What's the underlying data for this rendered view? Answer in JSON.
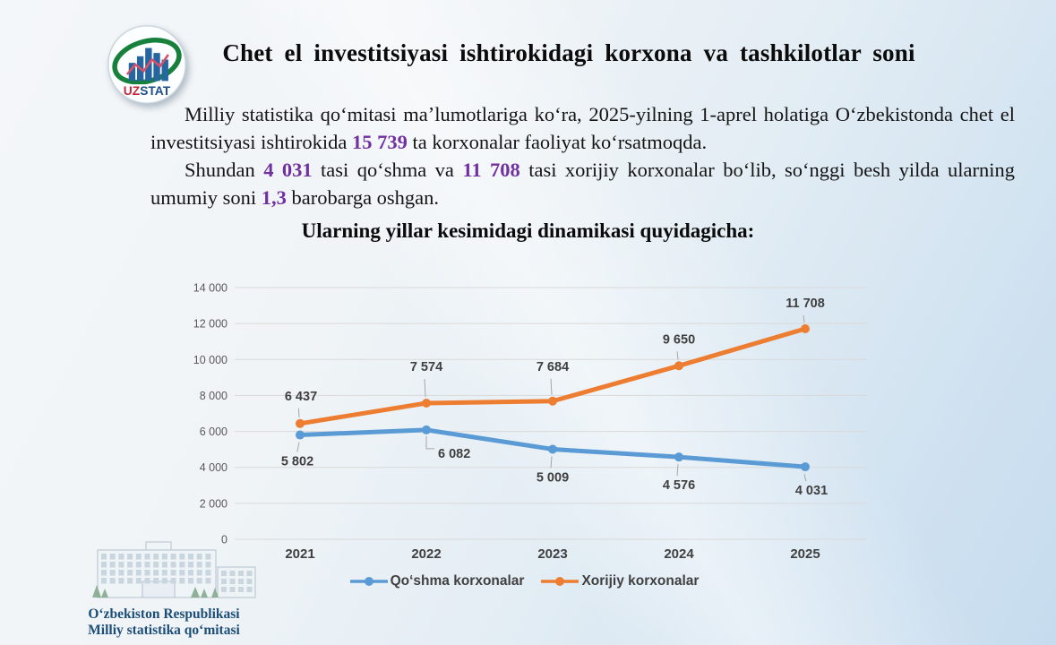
{
  "header": {
    "title": "Chet el investitsiyasi ishtirokidagi korxona va tashkilotlar soni",
    "logo": {
      "uz": "UZ",
      "stat": "STAT"
    }
  },
  "intro": {
    "highlight_color": "#7030A0",
    "paragraphs": [
      [
        {
          "text": "Milliy statistika qoʻmitasi maʼlumotlariga koʻra, 2025-yilning 1-aprel holatiga Oʻzbekistonda chet el investitsiyasi ishtirokida "
        },
        {
          "text": "15 739",
          "highlight": true
        },
        {
          "text": " ta korxonalar faoliyat koʻrsatmoqda."
        }
      ],
      [
        {
          "text": "Shundan "
        },
        {
          "text": "4 031",
          "highlight": true
        },
        {
          "text": " tasi qoʻshma va "
        },
        {
          "text": "11 708",
          "highlight": true
        },
        {
          "text": " tasi xorijiy korxonalar boʻlib, soʻnggi besh yilda ularning umumiy soni "
        },
        {
          "text": "1,3",
          "highlight": true
        },
        {
          "text": " barobarga oshgan."
        }
      ]
    ]
  },
  "subtitle": "Ularning yillar kesimidagi dinamikasi quyidagicha:",
  "chart_data": {
    "type": "line",
    "title": "",
    "categories": [
      "2021",
      "2022",
      "2023",
      "2024",
      "2025"
    ],
    "series": [
      {
        "name": "Qoʻshma korxonalar",
        "color": "#5B9BD5",
        "values": [
          5802,
          6082,
          5009,
          4576,
          4031
        ],
        "labels": [
          "5 802",
          "6 082",
          "5 009",
          "4 576",
          "4 031"
        ],
        "label_offsets": [
          {
            "dx": -3,
            "dy": 34
          },
          {
            "dx": 13,
            "dy": 31,
            "elbow": true
          },
          {
            "dx": 0,
            "dy": 36
          },
          {
            "dx": 0,
            "dy": 36
          },
          {
            "dx": 7,
            "dy": 31
          }
        ]
      },
      {
        "name": "Xorijiy korxonalar",
        "color": "#ED7D31",
        "values": [
          6437,
          7574,
          7684,
          9650,
          11708
        ],
        "labels": [
          "6 437",
          "7 574",
          "7 684",
          "9 650",
          "11 708"
        ],
        "label_offsets": [
          {
            "dx": 1,
            "dy": -26
          },
          {
            "dx": 0,
            "dy": -36
          },
          {
            "dx": 0,
            "dy": -34
          },
          {
            "dx": 0,
            "dy": -25
          },
          {
            "dx": 0,
            "dy": -24
          }
        ]
      }
    ],
    "ylim": [
      0,
      14000
    ],
    "ytick_step": 2000,
    "yticks": [
      "0",
      "2 000",
      "4 000",
      "6 000",
      "8 000",
      "10 000",
      "12 000",
      "14 000"
    ],
    "grid": true,
    "gridline_color": "#d9d9d9",
    "leader_line_color": "#a6a6a6",
    "legend_position": "bottom",
    "xlabel": "",
    "ylabel": ""
  },
  "footer": {
    "line1": "Oʻzbekiston Respublikasi",
    "line2": "Milliy statistika qoʻmitasi"
  }
}
